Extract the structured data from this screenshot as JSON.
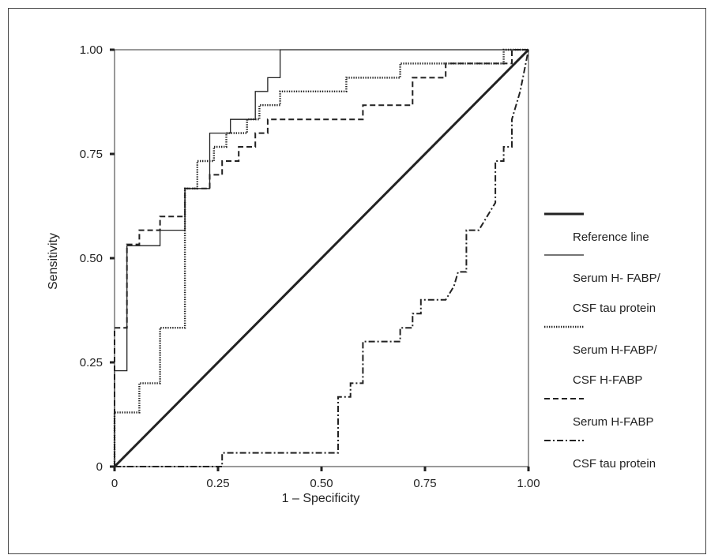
{
  "chart_data": {
    "type": "line",
    "xlabel": "1 – Specificity",
    "ylabel": "Sensitivity",
    "xlim": [
      0,
      1
    ],
    "ylim": [
      0,
      1
    ],
    "x_ticks": [
      {
        "value": 0,
        "label": "0"
      },
      {
        "value": 0.25,
        "label": "0.25"
      },
      {
        "value": 0.5,
        "label": "0.50"
      },
      {
        "value": 0.75,
        "label": "0.75"
      },
      {
        "value": 1,
        "label": "1.00"
      }
    ],
    "y_ticks": [
      {
        "value": 0,
        "label": "0"
      },
      {
        "value": 0.25,
        "label": "0.25"
      },
      {
        "value": 0.5,
        "label": "0.50"
      },
      {
        "value": 0.75,
        "label": "0.75"
      },
      {
        "value": 1,
        "label": "1.00"
      }
    ],
    "grid": false,
    "legend_position": "right",
    "series": [
      {
        "name": "Reference line",
        "style": "thick-solid",
        "color": "#222222",
        "points": [
          [
            0,
            0
          ],
          [
            1,
            1
          ]
        ]
      },
      {
        "name": [
          "Serum H- FABP/",
          "CSF tau protein"
        ],
        "style": "solid",
        "color": "#222222",
        "points": [
          [
            0,
            0
          ],
          [
            0,
            0.23
          ],
          [
            0.03,
            0.23
          ],
          [
            0.03,
            0.53
          ],
          [
            0.11,
            0.53
          ],
          [
            0.11,
            0.567
          ],
          [
            0.17,
            0.567
          ],
          [
            0.17,
            0.667
          ],
          [
            0.23,
            0.667
          ],
          [
            0.23,
            0.8
          ],
          [
            0.28,
            0.8
          ],
          [
            0.28,
            0.833
          ],
          [
            0.34,
            0.833
          ],
          [
            0.34,
            0.9
          ],
          [
            0.37,
            0.9
          ],
          [
            0.37,
            0.933
          ],
          [
            0.4,
            0.933
          ],
          [
            0.4,
            1.0
          ],
          [
            0.94,
            1.0
          ],
          [
            0.94,
            1.0
          ],
          [
            1.0,
            1.0
          ]
        ]
      },
      {
        "name": [
          "Serum H-FABP/",
          "CSF H-FABP"
        ],
        "style": "dotted",
        "color": "#222222",
        "points": [
          [
            0,
            0
          ],
          [
            0,
            0.13
          ],
          [
            0.06,
            0.13
          ],
          [
            0.06,
            0.2
          ],
          [
            0.11,
            0.2
          ],
          [
            0.11,
            0.333
          ],
          [
            0.17,
            0.333
          ],
          [
            0.17,
            0.667
          ],
          [
            0.2,
            0.667
          ],
          [
            0.2,
            0.733
          ],
          [
            0.24,
            0.733
          ],
          [
            0.24,
            0.767
          ],
          [
            0.27,
            0.767
          ],
          [
            0.27,
            0.8
          ],
          [
            0.32,
            0.8
          ],
          [
            0.32,
            0.833
          ],
          [
            0.35,
            0.833
          ],
          [
            0.35,
            0.867
          ],
          [
            0.4,
            0.867
          ],
          [
            0.4,
            0.9
          ],
          [
            0.56,
            0.9
          ],
          [
            0.56,
            0.933
          ],
          [
            0.69,
            0.933
          ],
          [
            0.69,
            0.967
          ],
          [
            0.94,
            0.967
          ],
          [
            0.94,
            1.0
          ],
          [
            1.0,
            1.0
          ]
        ]
      },
      {
        "name": "Serum H-FABP",
        "style": "dashed",
        "color": "#222222",
        "points": [
          [
            0,
            0
          ],
          [
            0,
            0.333
          ],
          [
            0.03,
            0.333
          ],
          [
            0.03,
            0.533
          ],
          [
            0.06,
            0.533
          ],
          [
            0.06,
            0.567
          ],
          [
            0.11,
            0.567
          ],
          [
            0.11,
            0.6
          ],
          [
            0.17,
            0.6
          ],
          [
            0.17,
            0.667
          ],
          [
            0.23,
            0.667
          ],
          [
            0.23,
            0.7
          ],
          [
            0.26,
            0.7
          ],
          [
            0.26,
            0.733
          ],
          [
            0.3,
            0.733
          ],
          [
            0.3,
            0.767
          ],
          [
            0.34,
            0.767
          ],
          [
            0.34,
            0.8
          ],
          [
            0.37,
            0.8
          ],
          [
            0.37,
            0.833
          ],
          [
            0.6,
            0.833
          ],
          [
            0.6,
            0.867
          ],
          [
            0.72,
            0.867
          ],
          [
            0.72,
            0.933
          ],
          [
            0.8,
            0.933
          ],
          [
            0.8,
            0.967
          ],
          [
            0.96,
            0.967
          ],
          [
            0.96,
            1.0
          ],
          [
            1.0,
            1.0
          ]
        ]
      },
      {
        "name": "CSF tau protein",
        "style": "dash-dot",
        "color": "#222222",
        "points": [
          [
            0,
            0
          ],
          [
            0.26,
            0
          ],
          [
            0.26,
            0.033
          ],
          [
            0.54,
            0.033
          ],
          [
            0.54,
            0.167
          ],
          [
            0.57,
            0.167
          ],
          [
            0.57,
            0.2
          ],
          [
            0.6,
            0.2
          ],
          [
            0.6,
            0.3
          ],
          [
            0.69,
            0.3
          ],
          [
            0.69,
            0.333
          ],
          [
            0.72,
            0.333
          ],
          [
            0.72,
            0.367
          ],
          [
            0.74,
            0.367
          ],
          [
            0.74,
            0.4
          ],
          [
            0.8,
            0.4
          ],
          [
            0.82,
            0.433
          ],
          [
            0.83,
            0.467
          ],
          [
            0.85,
            0.467
          ],
          [
            0.85,
            0.567
          ],
          [
            0.88,
            0.567
          ],
          [
            0.9,
            0.6
          ],
          [
            0.92,
            0.633
          ],
          [
            0.92,
            0.733
          ],
          [
            0.94,
            0.733
          ],
          [
            0.94,
            0.767
          ],
          [
            0.96,
            0.767
          ],
          [
            0.96,
            0.833
          ],
          [
            0.98,
            0.9
          ],
          [
            1.0,
            1.0
          ]
        ]
      }
    ]
  }
}
